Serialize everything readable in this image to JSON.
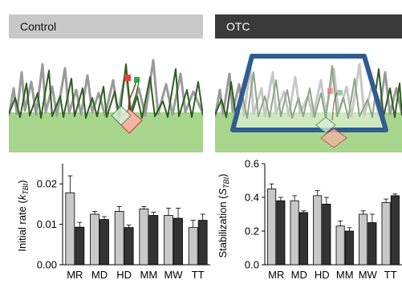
{
  "panels": {
    "left": {
      "header": "Control"
    },
    "right": {
      "header": "OTC"
    }
  },
  "colors": {
    "header_left_bg": "#c8c8c8",
    "header_right_bg": "#3a3a3a",
    "bar_light": "#c8c8c8",
    "bar_dark": "#333333",
    "ground": "#a7d58c",
    "grass_dark": "#2f5d21",
    "grass_grey": "#9a9a9a",
    "chamber": "#2f5d91"
  },
  "chart_data": [
    {
      "type": "bar",
      "categories": [
        "MR",
        "MD",
        "HD",
        "MM",
        "MW",
        "TT"
      ],
      "ylabel_main": "Initial rate (",
      "ylabel_sym": "k",
      "ylabel_sub": "TBI",
      "ylabel_end": ")",
      "ylim": [
        0,
        0.025
      ],
      "yticks": [
        0.0,
        0.01,
        0.02
      ],
      "ytick_labels": [
        "0.00",
        "0.01",
        "0.02"
      ],
      "series": [
        {
          "values": [
            0.0178,
            0.0125,
            0.0132,
            0.0138,
            0.0122,
            0.0092
          ],
          "errors": [
            0.0042,
            0.0007,
            0.0012,
            0.0006,
            0.0018,
            0.0018
          ]
        },
        {
          "values": [
            0.0093,
            0.0112,
            0.0092,
            0.0122,
            0.0115,
            0.011
          ],
          "errors": [
            0.0012,
            0.0007,
            0.0006,
            0.0008,
            0.0025,
            0.0015
          ]
        }
      ]
    },
    {
      "type": "bar",
      "categories": [
        "MR",
        "MD",
        "HD",
        "MM",
        "MW",
        "TT"
      ],
      "ylabel_main": "Stabilization (",
      "ylabel_sym": "S",
      "ylabel_sub": "TBI",
      "ylabel_end": ")",
      "ylim": [
        0,
        0.6
      ],
      "yticks": [
        0.0,
        0.2,
        0.4,
        0.6
      ],
      "ytick_labels": [
        "0.0",
        "0.2",
        "0.4",
        "0.6"
      ],
      "series": [
        {
          "values": [
            0.45,
            0.38,
            0.41,
            0.23,
            0.3,
            0.37
          ],
          "errors": [
            0.03,
            0.03,
            0.03,
            0.03,
            0.02,
            0.02
          ]
        },
        {
          "values": [
            0.38,
            0.31,
            0.36,
            0.2,
            0.25,
            0.41
          ],
          "errors": [
            0.02,
            0.01,
            0.04,
            0.02,
            0.05,
            0.01
          ]
        }
      ]
    }
  ]
}
